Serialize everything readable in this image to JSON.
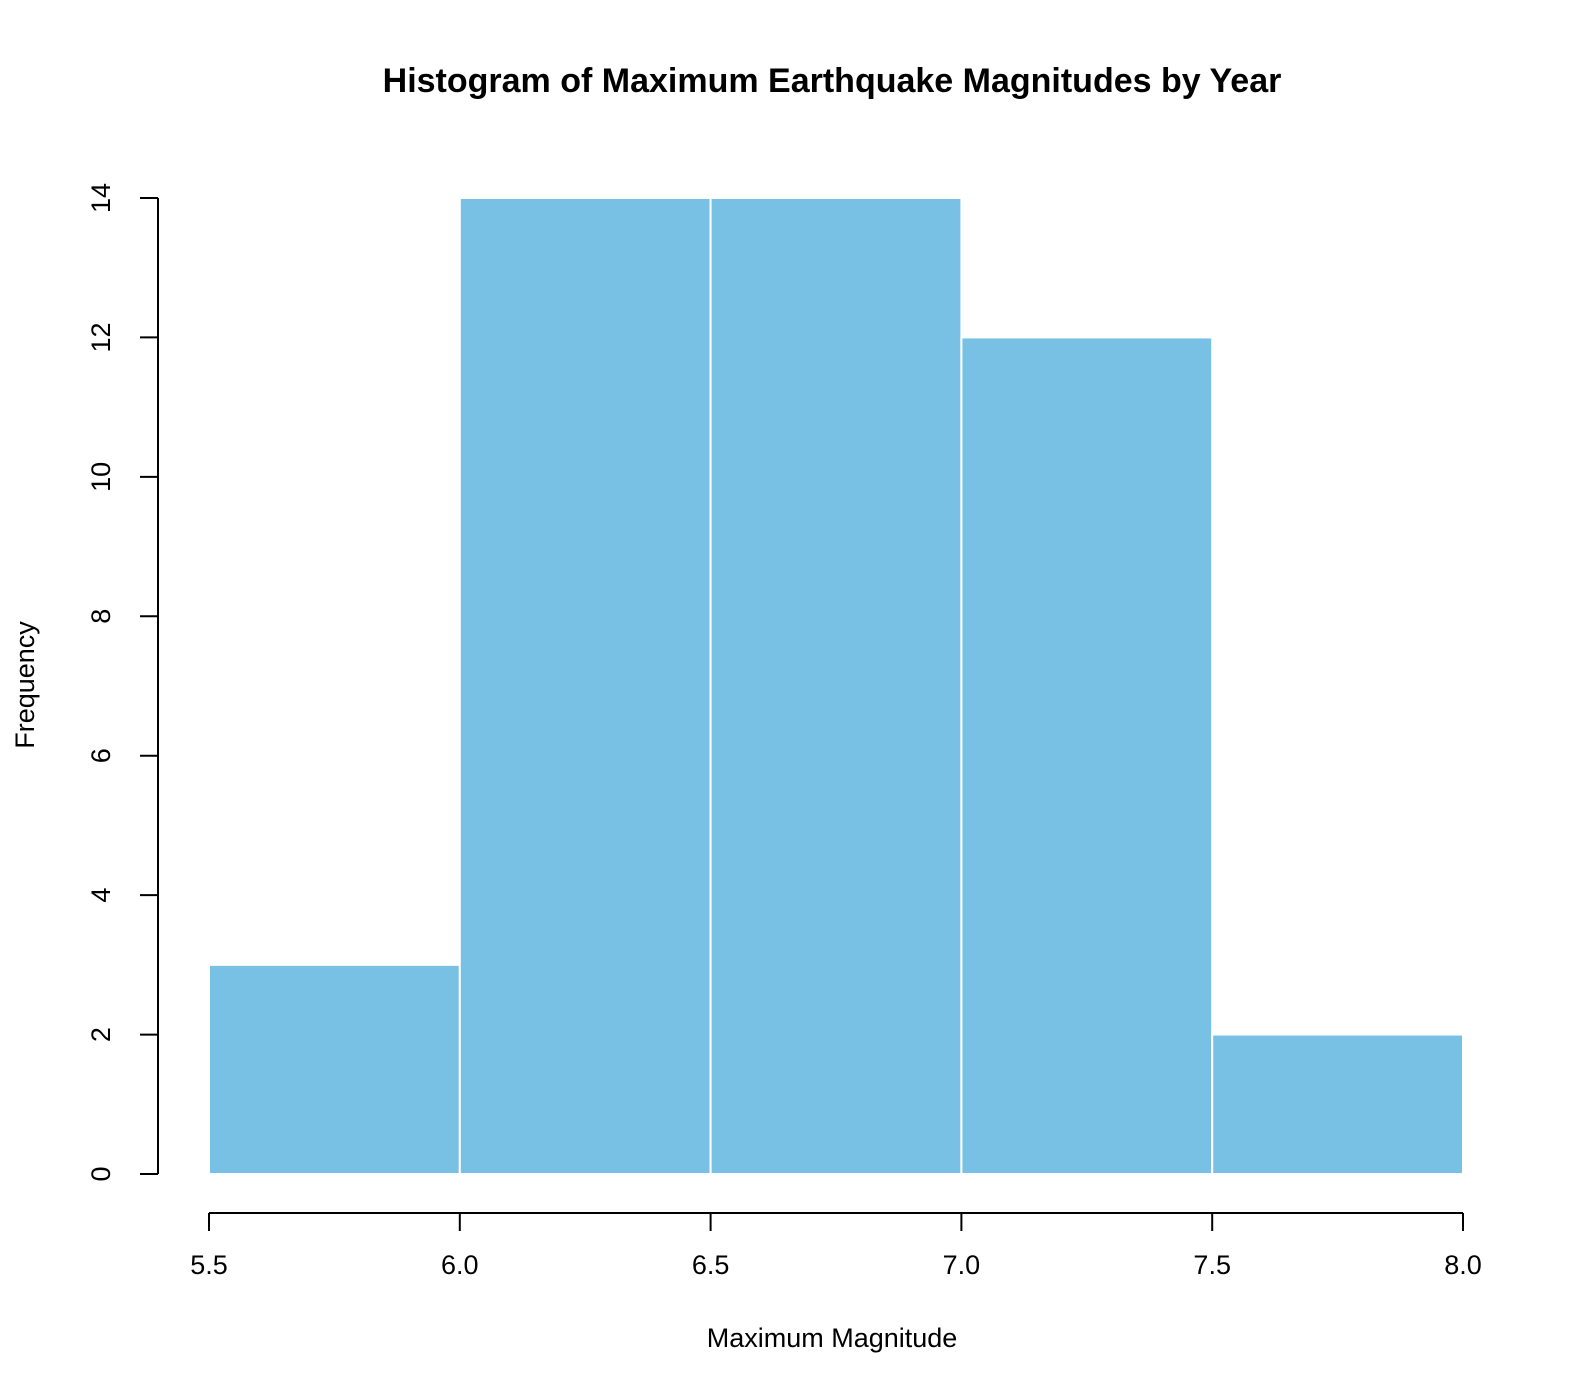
{
  "chart_data": {
    "type": "bar",
    "title": "Histogram of Maximum Earthquake Magnitudes by Year",
    "xlabel": "Maximum Magnitude",
    "ylabel": "Frequency",
    "bins": [
      {
        "from": 5.5,
        "to": 6.0,
        "value": 3
      },
      {
        "from": 6.0,
        "to": 6.5,
        "value": 14
      },
      {
        "from": 6.5,
        "to": 7.0,
        "value": 14
      },
      {
        "from": 7.0,
        "to": 7.5,
        "value": 12
      },
      {
        "from": 7.5,
        "to": 8.0,
        "value": 2
      }
    ],
    "x_ticks": [
      5.5,
      6.0,
      6.5,
      7.0,
      7.5,
      8.0
    ],
    "x_tick_labels": [
      "5.5",
      "6.0",
      "6.5",
      "7.0",
      "7.5",
      "8.0"
    ],
    "y_ticks": [
      0,
      2,
      4,
      6,
      8,
      10,
      12,
      14
    ],
    "y_tick_labels": [
      "0",
      "2",
      "4",
      "6",
      "8",
      "10",
      "12",
      "14"
    ],
    "xlim": [
      5.5,
      8.0
    ],
    "ylim": [
      0,
      14
    ],
    "grid": false,
    "legend": "none",
    "bar_color": "#79C1E4",
    "bar_border_color": "#FFFFFF"
  }
}
